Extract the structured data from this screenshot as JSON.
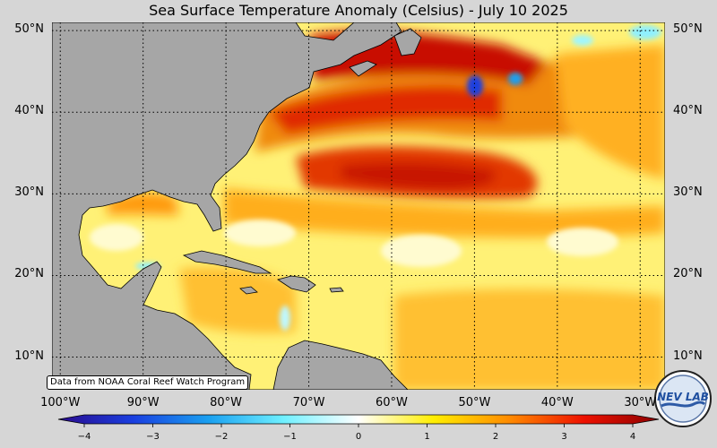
{
  "title": "Sea Surface Temperature Anomaly (Celsius) - July 10 2025",
  "credit": "Data from NOAA Coral Reef Watch Program",
  "logo": {
    "name": "nev-lab-logo",
    "text": "NEV LAB"
  },
  "map": {
    "extent": {
      "lon": [
        -101,
        -27
      ],
      "lat": [
        6,
        51
      ]
    },
    "lat_ticks": [
      {
        "value": 50,
        "label": "50°N"
      },
      {
        "value": 40,
        "label": "40°N"
      },
      {
        "value": 30,
        "label": "30°N"
      },
      {
        "value": 20,
        "label": "20°N"
      },
      {
        "value": 10,
        "label": "10°N"
      }
    ],
    "lon_ticks": [
      {
        "value": -100,
        "label": "100°W"
      },
      {
        "value": -90,
        "label": "90°W"
      },
      {
        "value": -80,
        "label": "80°W"
      },
      {
        "value": -70,
        "label": "70°W"
      },
      {
        "value": -60,
        "label": "60°W"
      },
      {
        "value": -50,
        "label": "50°W"
      },
      {
        "value": -40,
        "label": "40°W"
      },
      {
        "value": -30,
        "label": "30°W"
      }
    ],
    "land_color": "#a6a6a6",
    "ocean_base_color": "#fff176"
  },
  "colorbar": {
    "range": [
      -4,
      4
    ],
    "ticks": [
      {
        "value": -4,
        "label": "−4"
      },
      {
        "value": -3,
        "label": "−3"
      },
      {
        "value": -2,
        "label": "−2"
      },
      {
        "value": -1,
        "label": "−1"
      },
      {
        "value": 0,
        "label": "0"
      },
      {
        "value": 1,
        "label": "1"
      },
      {
        "value": 2,
        "label": "2"
      },
      {
        "value": 3,
        "label": "3"
      },
      {
        "value": 4,
        "label": "4"
      }
    ],
    "stops": [
      {
        "value": -4,
        "color": "#2a0a8c"
      },
      {
        "value": -3,
        "color": "#1a3fe0"
      },
      {
        "value": -2,
        "color": "#1aa0f0"
      },
      {
        "value": -1,
        "color": "#6ff0ff"
      },
      {
        "value": 0,
        "color": "#ffffff"
      },
      {
        "value": 1,
        "color": "#ffee00"
      },
      {
        "value": 2,
        "color": "#ff8c00"
      },
      {
        "value": 3,
        "color": "#ee1100"
      },
      {
        "value": 4,
        "color": "#8c0000"
      }
    ]
  }
}
